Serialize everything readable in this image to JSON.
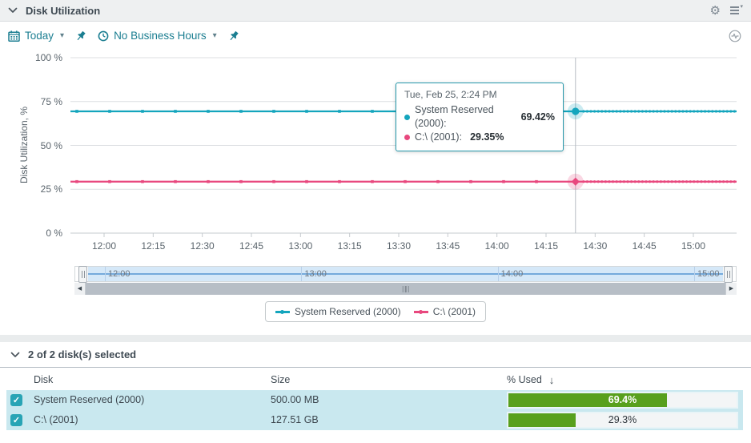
{
  "header": {
    "title": "Disk Utilization"
  },
  "toolbar": {
    "date_range_label": "Today",
    "business_hours_label": "No Business Hours"
  },
  "chart_data": {
    "type": "line",
    "title": "",
    "xlabel": "",
    "ylabel": "Disk Utilization, %",
    "ylim": [
      0,
      100
    ],
    "grid": "horizontal",
    "legend_position": "bottom-center",
    "y_ticks": [
      {
        "label": "100 %",
        "value": 100
      },
      {
        "label": "75 %",
        "value": 75
      },
      {
        "label": "50 %",
        "value": 50
      },
      {
        "label": "25 %",
        "value": 25
      },
      {
        "label": "0 %",
        "value": 0
      }
    ],
    "x_ticks": [
      "12:00",
      "12:15",
      "12:30",
      "12:45",
      "13:00",
      "13:15",
      "13:30",
      "13:45",
      "14:00",
      "14:15",
      "14:30",
      "14:45",
      "15:00"
    ],
    "series": [
      {
        "name": "System Reserved (2000)",
        "color": "#14a5bd",
        "value": 69.42,
        "marker": "circle"
      },
      {
        "name": "C:\\ (2001)",
        "color": "#e8487e",
        "value": 29.35,
        "marker": "diamond"
      }
    ],
    "hover": {
      "time": "2:24 PM",
      "minutes_from_first_tick": 144
    },
    "tooltip": {
      "time": "Tue, Feb 25, 2:24 PM",
      "entries": [
        {
          "label": "System Reserved (2000):",
          "value": "69.42%"
        },
        {
          "label": "C:\\ (2001):",
          "value": "29.35%"
        }
      ]
    },
    "overview_hour_labels": [
      "12:00",
      "13:00",
      "14:00",
      "15:00"
    ]
  },
  "selection_header": {
    "summary": "2 of 2 disk(s) selected"
  },
  "table": {
    "columns": {
      "disk": "Disk",
      "size": "Size",
      "used": "% Used"
    },
    "sort": {
      "column": "% Used",
      "direction": "desc",
      "arrow": "↓"
    },
    "rows": [
      {
        "disk": "System Reserved (2000)",
        "size": "500.00 MB",
        "used_pct": 69.4,
        "used_label": "69.4%",
        "checked": true
      },
      {
        "disk": "C:\\ (2001)",
        "size": "127.51 GB",
        "used_pct": 29.3,
        "used_label": "29.3%",
        "checked": true
      }
    ]
  },
  "colors": {
    "accent_teal": "#1b7e91",
    "series_teal": "#14a5bd",
    "series_pink": "#e8487e",
    "bar_green": "#58a01d",
    "row_highlight": "#c9e8ef"
  }
}
